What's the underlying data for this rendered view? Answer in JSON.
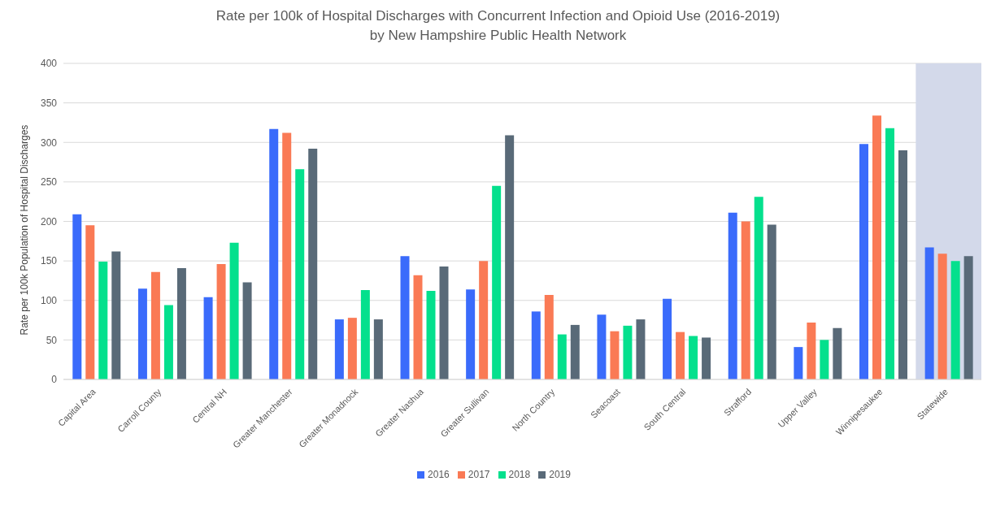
{
  "chart_data": {
    "type": "bar",
    "title": "Rate per 100k of Hospital Discharges with Concurrent Infection and Opioid Use (2016-2019)",
    "subtitle": "by New Hampshire Public Health Network",
    "ylabel": "Rate per 100k Population of Hospital Discharges",
    "categories": [
      "Capital Area",
      "Carroll County",
      "Central NH",
      "Greater Manchester",
      "Greater Monadnock",
      "Greater Nashua",
      "Greater Sullivan",
      "North Country",
      "Seacoast",
      "South Central",
      "Strafford",
      "Upper Valley",
      "Winnipesaukee",
      "Statewide"
    ],
    "series": [
      {
        "name": "2016",
        "color": "#3a6bfb",
        "values": [
          209,
          115,
          104,
          317,
          76,
          156,
          114,
          86,
          82,
          102,
          211,
          41,
          298,
          167
        ]
      },
      {
        "name": "2017",
        "color": "#fa7a55",
        "values": [
          195,
          136,
          146,
          312,
          78,
          132,
          150,
          107,
          61,
          60,
          200,
          72,
          334,
          159
        ]
      },
      {
        "name": "2018",
        "color": "#04e08d",
        "values": [
          149,
          94,
          173,
          266,
          113,
          112,
          245,
          57,
          68,
          55,
          231,
          50,
          318,
          150
        ]
      },
      {
        "name": "2019",
        "color": "#596a78",
        "values": [
          162,
          141,
          123,
          292,
          76,
          143,
          309,
          69,
          76,
          53,
          196,
          65,
          290,
          156
        ]
      }
    ],
    "bands": [
      {
        "axis": "x",
        "from": "Statewide",
        "to": "Statewide",
        "color": "#d3d9ea"
      }
    ],
    "ylim": [
      0,
      400
    ],
    "yticks": [
      0,
      50,
      100,
      150,
      200,
      250,
      300,
      350,
      400
    ],
    "grid": "y",
    "legend": "bottom"
  }
}
